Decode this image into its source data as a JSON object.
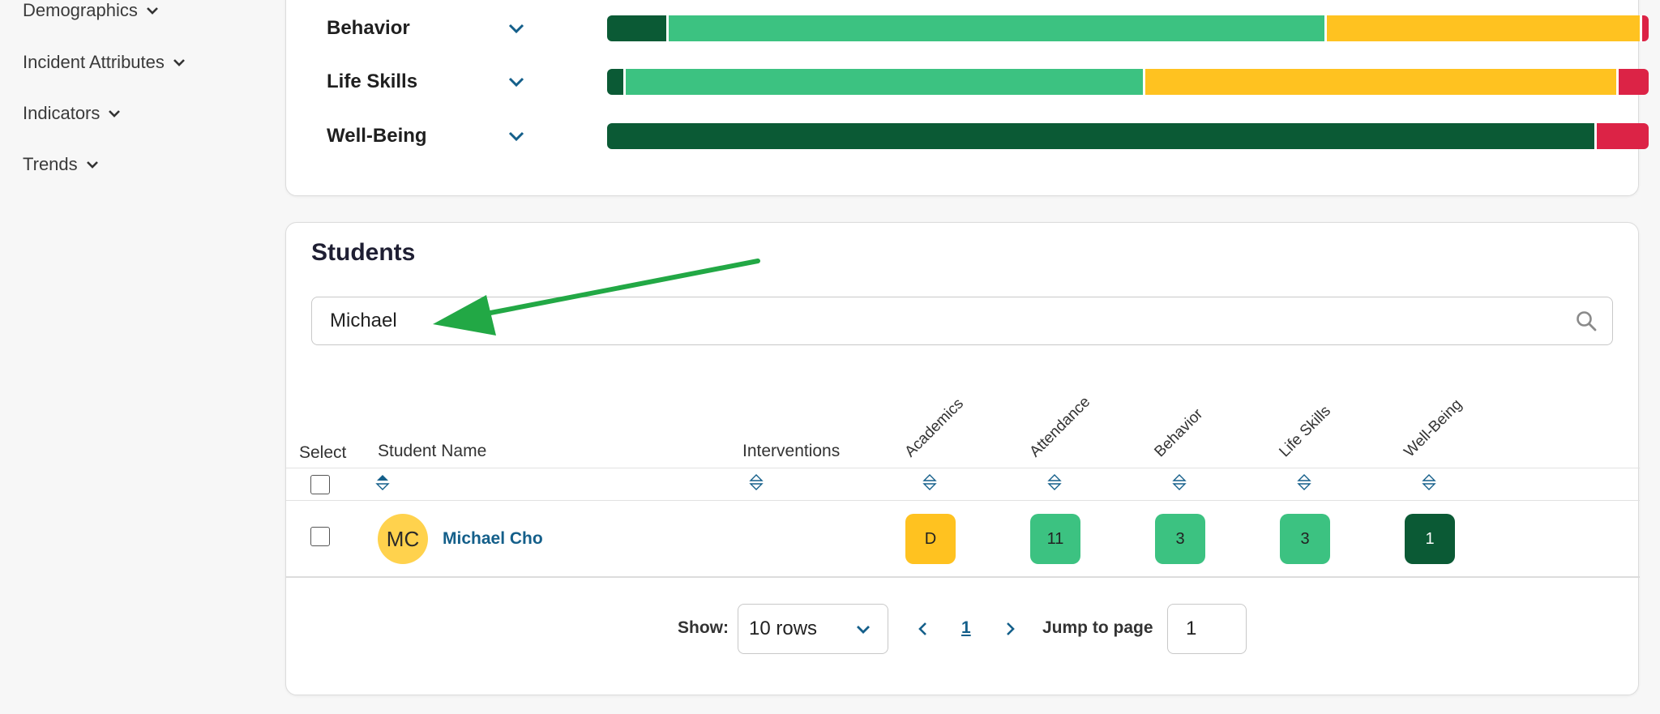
{
  "sidebar": {
    "items": [
      {
        "label": "Demographics"
      },
      {
        "label": "Incident Attributes"
      },
      {
        "label": "Indicators"
      },
      {
        "label": "Trends"
      }
    ]
  },
  "colors": {
    "dark_green": "#0b5a35",
    "green": "#3cc281",
    "yellow": "#ffc220",
    "red": "#dc2346",
    "link": "#145f8a",
    "annotation_arrow": "#22a845"
  },
  "summary_bars": [
    {
      "label": "Behavior",
      "segments": [
        {
          "color": "#0b5a35",
          "fraction": 0.057
        },
        {
          "color": "#3cc281",
          "fraction": 0.634
        },
        {
          "color": "#ffc220",
          "fraction": 0.303
        },
        {
          "color": "#dc2346",
          "fraction": 0.006
        }
      ]
    },
    {
      "label": "Life Skills",
      "segments": [
        {
          "color": "#0b5a35",
          "fraction": 0.016
        },
        {
          "color": "#3cc281",
          "fraction": 0.5
        },
        {
          "color": "#ffc220",
          "fraction": 0.455
        },
        {
          "color": "#dc2346",
          "fraction": 0.029
        }
      ]
    },
    {
      "label": "Well-Being",
      "segments": [
        {
          "color": "#0b5a35",
          "fraction": 0.95
        },
        {
          "color": "#dc2346",
          "fraction": 0.05
        }
      ]
    }
  ],
  "students": {
    "title": "Students",
    "search": {
      "value": "Michael",
      "placeholder": ""
    },
    "columns": {
      "select": "Select",
      "name": "Student Name",
      "interventions": "Interventions",
      "academics": "Academics",
      "attendance": "Attendance",
      "behavior": "Behavior",
      "life_skills": "Life Skills",
      "well_being": "Well-Being"
    },
    "rows": [
      {
        "initials": "MC",
        "name": "Michael Cho",
        "interventions": "",
        "academics": {
          "value": "D",
          "color": "#ffc220"
        },
        "attendance": {
          "value": "11",
          "color": "#3cc281"
        },
        "behavior": {
          "value": "3",
          "color": "#3cc281"
        },
        "life_skills": {
          "value": "3",
          "color": "#3cc281"
        },
        "well_being": {
          "value": "1",
          "color": "#0b5a35"
        }
      }
    ],
    "pagination": {
      "show_label": "Show:",
      "rows_value": "10 rows",
      "current_page": "1",
      "jump_label": "Jump to page",
      "jump_value": "1"
    }
  }
}
